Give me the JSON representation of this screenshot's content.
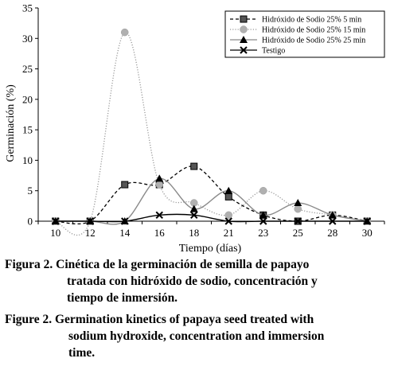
{
  "chart_data": {
    "type": "line",
    "title": "",
    "xlabel": "Tiempo (días)",
    "ylabel": "Germinación (%)",
    "categories": [
      "10",
      "12",
      "14",
      "16",
      "18",
      "21",
      "23",
      "25",
      "28",
      "30"
    ],
    "ylim": [
      0,
      35
    ],
    "yticks": [
      0,
      5,
      10,
      15,
      20,
      25,
      30,
      35
    ],
    "grid": false,
    "legend_position": "top-right",
    "series": [
      {
        "name": "Hidróxido de Sodio 25% 5 min",
        "values": [
          0,
          0,
          6,
          6,
          9,
          4,
          1,
          0,
          1,
          0
        ],
        "marker": "square",
        "line": "dashed",
        "color": "#000000"
      },
      {
        "name": "Hidróxido de Sodio 25% 15 min",
        "values": [
          0,
          0,
          31,
          6,
          3,
          1,
          5,
          2,
          1,
          0
        ],
        "marker": "circle",
        "line": "dotted",
        "color": "#9a9a9a"
      },
      {
        "name": "Hidróxido de Sodio 25% 25 min",
        "values": [
          0,
          0,
          0,
          7,
          2,
          5,
          1,
          3,
          1,
          0
        ],
        "marker": "triangle",
        "line": "solid",
        "color": "#8a8a8a"
      },
      {
        "name": "Testigo",
        "values": [
          0,
          0,
          0,
          1,
          1,
          0,
          0,
          0,
          0,
          0
        ],
        "marker": "x",
        "line": "solid",
        "color": "#000000"
      }
    ]
  },
  "caption_es": {
    "label": "Figura 2.",
    "line1": "Cinética de la germinación de semilla de papayo",
    "line2": "tratada con hidróxido de sodio, concentración y",
    "line3": "tiempo de inmersión."
  },
  "caption_en": {
    "label": "Figure 2.",
    "line1": "Germination kinetics of papaya seed treated with",
    "line2": "sodium hydroxide, concentration and immersion",
    "line3": "time."
  }
}
